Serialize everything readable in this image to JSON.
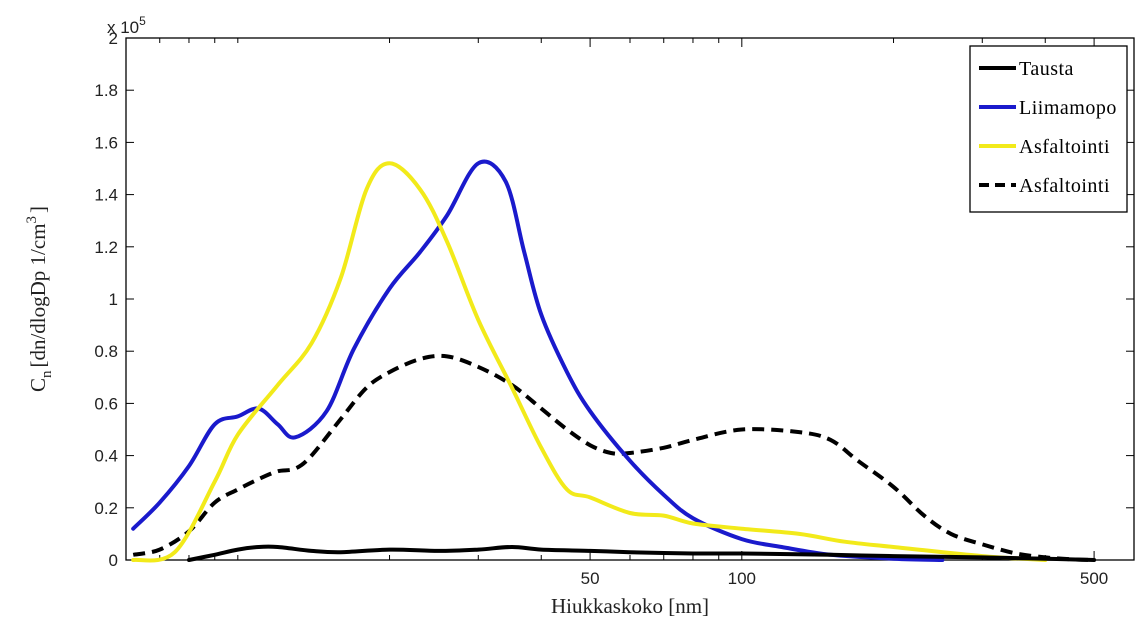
{
  "chart_data": {
    "type": "line",
    "xlabel": "Hiukkaskoko [nm]",
    "ylabel_main": "C",
    "ylabel_sub": "n",
    "ylabel_rest": "[dn/dlogDp  1/cm",
    "ylabel_sup": "3",
    "ylabel_end": "]",
    "y_multiplier_base": "x 10",
    "y_multiplier_exp": "5",
    "x_scale": "log",
    "xlim": [
      6,
      600
    ],
    "ylim": [
      0,
      200000
    ],
    "x_ticks": [
      50,
      100,
      500
    ],
    "x_tick_labels": [
      "50",
      "100",
      "500"
    ],
    "y_ticks": [
      0,
      20000,
      40000,
      60000,
      80000,
      100000,
      120000,
      140000,
      160000,
      180000,
      200000
    ],
    "y_tick_labels": [
      "0",
      "0.2",
      "0.4",
      "0.6",
      "0.8",
      "1",
      "1.2",
      "1.4",
      "1.6",
      "1.8",
      "2"
    ],
    "legend_position": "top-right",
    "series": [
      {
        "name": "Tausta",
        "color": "#000000",
        "dash": "solid",
        "x": [
          8,
          9,
          10,
          11,
          12,
          14,
          16,
          20,
          25,
          30,
          35,
          40,
          50,
          60,
          80,
          100,
          150,
          200,
          300,
          400,
          500
        ],
        "y": [
          0,
          2000,
          4000,
          5000,
          5000,
          3500,
          3000,
          4000,
          3500,
          4000,
          5000,
          4000,
          3500,
          3000,
          2500,
          2500,
          2000,
          1500,
          1000,
          500,
          0
        ]
      },
      {
        "name": "Liimamopo",
        "color": "#1a1acc",
        "dash": "solid",
        "x": [
          6.2,
          7,
          8,
          9,
          10,
          11,
          12,
          13,
          15,
          17,
          20,
          23,
          26,
          30,
          34,
          37,
          40,
          45,
          50,
          60,
          70,
          80,
          100,
          120,
          150,
          200,
          250
        ],
        "y": [
          12000,
          22000,
          36000,
          52000,
          55000,
          58000,
          52000,
          47000,
          57000,
          81000,
          104000,
          118000,
          132000,
          152000,
          145000,
          118000,
          94000,
          72000,
          57000,
          38000,
          25000,
          16000,
          8000,
          5000,
          2000,
          500,
          0
        ]
      },
      {
        "name": "Asfaltointi",
        "color": "#f2ea1a",
        "dash": "solid",
        "x": [
          6.2,
          7.5,
          9,
          10,
          12,
          14,
          16,
          18,
          20,
          23,
          26,
          30,
          35,
          40,
          45,
          50,
          60,
          70,
          80,
          100,
          130,
          160,
          200,
          300,
          400
        ],
        "y": [
          0,
          3000,
          30000,
          48000,
          67000,
          83000,
          108000,
          142000,
          152000,
          142000,
          122000,
          92000,
          66000,
          43000,
          27000,
          24000,
          18000,
          17000,
          14000,
          12000,
          10000,
          7000,
          5000,
          1500,
          0
        ]
      },
      {
        "name": "Asfaltointi",
        "color": "#000000",
        "dash": "dashed",
        "x": [
          6.2,
          7,
          8,
          9,
          10,
          11,
          12,
          13,
          14,
          16,
          18,
          20,
          23,
          26,
          30,
          35,
          40,
          45,
          50,
          55,
          60,
          70,
          80,
          100,
          130,
          150,
          170,
          200,
          230,
          260,
          300,
          350,
          400,
          450,
          500
        ],
        "y": [
          2000,
          4000,
          11000,
          22000,
          27000,
          31000,
          34000,
          35000,
          40000,
          54000,
          66000,
          72000,
          77000,
          78000,
          74000,
          67000,
          58000,
          50000,
          44000,
          41000,
          41000,
          43000,
          46000,
          50000,
          49000,
          46000,
          38000,
          28000,
          17000,
          10000,
          6000,
          2500,
          1000,
          300,
          0
        ]
      }
    ]
  }
}
